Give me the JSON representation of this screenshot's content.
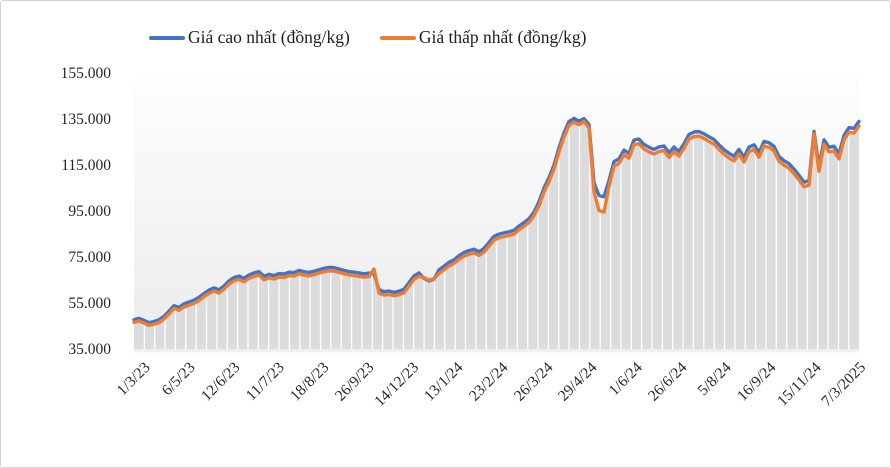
{
  "chart": {
    "legend": {
      "position": "top"
    }
  },
  "chart_data": {
    "type": "line",
    "title": "",
    "xlabel": "",
    "ylabel": "",
    "legend_position": "top",
    "grid": "vertical-white-inside-area",
    "area_fill_color": "#dcdcdc",
    "plot_bg_top": "#fefefe",
    "plot_bg_bottom": "#ebebeb",
    "y_axis": {
      "min": 35000,
      "max": 155000,
      "tick_labels": [
        "35.000",
        "55.000",
        "75.000",
        "95.000",
        "115.000",
        "135.000",
        "155.000"
      ]
    },
    "x_axis": {
      "tick_labels": [
        "1/3/23",
        "6/5/23",
        "12/6/23",
        "11/7/23",
        "18/8/23",
        "26/9/23",
        "14/12/23",
        "13/1/24",
        "23/2/24",
        "26/3/24",
        "29/4/24",
        "1/6/24",
        "26/6/24",
        "5/8/24",
        "16/9/24",
        "15/11/24",
        "7/3/2025"
      ]
    },
    "series": [
      {
        "name": "Giá cao nhất (đồng/kg)",
        "color": "#4472C4",
        "values": [
          47900,
          48500,
          47600,
          46600,
          47100,
          47800,
          49400,
          51600,
          54000,
          53200,
          54800,
          55600,
          56400,
          57600,
          59300,
          60800,
          61800,
          60900,
          62600,
          64800,
          66300,
          66900,
          65900,
          67400,
          68300,
          68800,
          66800,
          67700,
          67100,
          68000,
          67800,
          68600,
          68400,
          69400,
          68800,
          68500,
          69000,
          69700,
          70300,
          70700,
          70600,
          70000,
          69400,
          68900,
          68600,
          68300,
          67900,
          68200,
          67800,
          61000,
          60100,
          60400,
          59800,
          60300,
          61100,
          64000,
          67000,
          68300,
          65900,
          64800,
          65600,
          69600,
          71200,
          72900,
          74000,
          75800,
          77200,
          78000,
          78600,
          77500,
          78900,
          81600,
          84200,
          85200,
          85700,
          86200,
          86800,
          88700,
          90200,
          91900,
          94800,
          99300,
          105300,
          109800,
          115300,
          122800,
          129300,
          134300,
          135600,
          134400,
          135500,
          133000,
          107500,
          102000,
          101500,
          108500,
          116800,
          118000,
          121800,
          120300,
          126200,
          126600,
          124300,
          123000,
          122100,
          123200,
          123600,
          120600,
          123100,
          121200,
          124600,
          128600,
          129700,
          129900,
          128900,
          127600,
          126400,
          124100,
          122000,
          120400,
          119100,
          122100,
          118600,
          123100,
          124100,
          120700,
          125600,
          125000,
          123400,
          119000,
          117200,
          115900,
          113500,
          110800,
          107800,
          108500,
          130000,
          114500,
          126300,
          123000,
          123500,
          120000,
          128200,
          131600,
          131200,
          134300
        ]
      },
      {
        "name": "Giá thấp nhất (đồng/kg)",
        "color": "#ED7D31",
        "values": [
          46700,
          47300,
          46400,
          45400,
          45900,
          46600,
          48200,
          50400,
          52800,
          52000,
          53400,
          54200,
          55000,
          56200,
          57900,
          59400,
          60400,
          59500,
          61200,
          63400,
          64800,
          65400,
          64400,
          65900,
          66800,
          67300,
          65300,
          66200,
          65600,
          66500,
          66300,
          67100,
          66900,
          67900,
          67300,
          67000,
          67500,
          68200,
          68800,
          69200,
          69100,
          68500,
          67900,
          67400,
          67100,
          66800,
          66400,
          66700,
          70000,
          59500,
          58600,
          58900,
          58300,
          58800,
          59600,
          62500,
          65500,
          66800,
          66200,
          65200,
          65800,
          68000,
          69600,
          71300,
          72400,
          74200,
          75600,
          76400,
          77000,
          75900,
          77300,
          80000,
          82600,
          83600,
          84100,
          84600,
          85200,
          87100,
          88600,
          90300,
          93200,
          97500,
          103500,
          108000,
          113500,
          121000,
          127500,
          132500,
          134000,
          132800,
          134300,
          131500,
          103500,
          95500,
          94800,
          106000,
          114800,
          116000,
          119800,
          118300,
          124200,
          124600,
          122300,
          121000,
          120100,
          121200,
          121600,
          118600,
          121100,
          119200,
          122600,
          126600,
          127700,
          127900,
          126900,
          125600,
          124400,
          122100,
          120000,
          118400,
          117100,
          120100,
          116600,
          121100,
          122100,
          118700,
          123600,
          123000,
          121400,
          117000,
          115200,
          113900,
          111500,
          108800,
          105800,
          106500,
          128800,
          112500,
          124300,
          121000,
          121500,
          118000,
          126200,
          129600,
          129200,
          132300
        ]
      }
    ]
  }
}
